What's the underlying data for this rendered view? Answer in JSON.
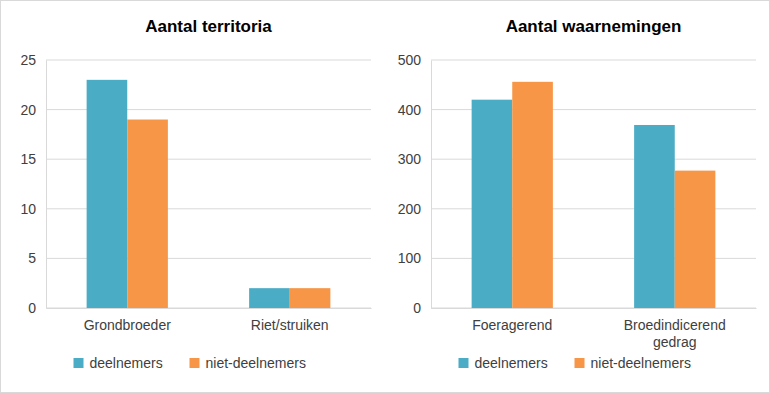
{
  "chart_data": [
    {
      "type": "bar",
      "title": "Aantal territoria",
      "categories": [
        "Grondbroeder",
        "Riet/struiken"
      ],
      "series": [
        {
          "name": "deelnemers",
          "color": "#4bacc6",
          "values": [
            23,
            2
          ]
        },
        {
          "name": "niet-deelnemers",
          "color": "#f79646",
          "values": [
            19,
            2
          ]
        }
      ],
      "ylim": [
        0,
        25
      ],
      "yticks": [
        0,
        5,
        10,
        15,
        20,
        25
      ],
      "grid": true,
      "legend": "bottom"
    },
    {
      "type": "bar",
      "title": "Aantal waarnemingen",
      "categories": [
        "Foeragerend",
        "Broedindicerend gedrag"
      ],
      "series": [
        {
          "name": "deelnemers",
          "color": "#4bacc6",
          "values": [
            420,
            369
          ]
        },
        {
          "name": "niet-deelnemers",
          "color": "#f79646",
          "values": [
            456,
            277
          ]
        }
      ],
      "ylim": [
        0,
        500
      ],
      "yticks": [
        0,
        100,
        200,
        300,
        400,
        500
      ],
      "grid": true,
      "legend": "bottom"
    }
  ]
}
